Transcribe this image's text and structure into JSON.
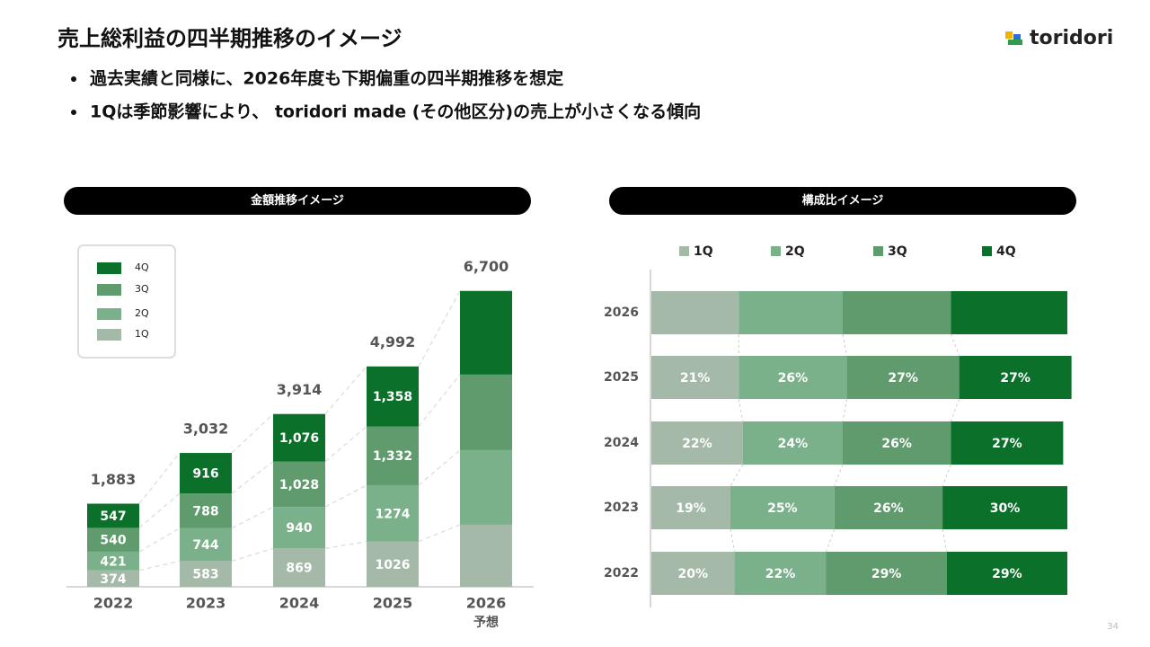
{
  "header": {
    "title": "売上総利益の四半期推移のイメージ",
    "bullets": [
      "過去実績と同様に、2026年度も下期偏重の四半期推移を想定",
      "1Qは季節影響により、 toridori made (その他区分)の売上が小さくなる傾向"
    ],
    "logo": "toridori",
    "page_number": "34"
  },
  "chart_data": [
    {
      "type": "bar",
      "stacked": true,
      "title": "金額推移イメージ",
      "categories": [
        "2022",
        "2023",
        "2024",
        "2025",
        "2026"
      ],
      "category_note": "予想",
      "ylim": [
        0,
        7000
      ],
      "series": [
        {
          "name": "1Q",
          "color": "#a4b9a7",
          "values": [
            374,
            583,
            869,
            1026,
            1405
          ],
          "value_labels": [
            "374",
            "583",
            "869",
            "1026",
            null
          ]
        },
        {
          "name": "2Q",
          "color": "#7ab08a",
          "values": [
            421,
            744,
            940,
            1274,
            1690
          ],
          "value_labels": [
            "421",
            "744",
            "940",
            "1274",
            null
          ]
        },
        {
          "name": "3Q",
          "color": "#5f9b6c",
          "values": [
            540,
            788,
            1028,
            1332,
            1710
          ],
          "value_labels": [
            "540",
            "788",
            "1,028",
            "1,332",
            null
          ]
        },
        {
          "name": "4Q",
          "color": "#0b7029",
          "values": [
            547,
            916,
            1076,
            1358,
            1895
          ],
          "value_labels": [
            "547",
            "916",
            "1,076",
            "1,358",
            null
          ]
        }
      ],
      "totals": [
        1883,
        3032,
        3914,
        4992,
        6700
      ],
      "total_labels": [
        "1,883",
        "3,032",
        "3,914",
        "4,992",
        "6,700"
      ],
      "legend": "upper left"
    },
    {
      "type": "bar",
      "stacked": true,
      "orientation": "horizontal",
      "title": "構成比イメージ",
      "categories": [
        "2026",
        "2025",
        "2024",
        "2023",
        "2022"
      ],
      "xlim": [
        0,
        100
      ],
      "legend": "top",
      "series": [
        {
          "name": "1Q",
          "color": "#a4b9a7",
          "values": [
            21,
            21,
            22,
            19,
            20
          ],
          "value_labels": [
            null,
            "21%",
            "22%",
            "19%",
            "20%"
          ]
        },
        {
          "name": "2Q",
          "color": "#7ab08a",
          "values": [
            25,
            26,
            24,
            25,
            22
          ],
          "value_labels": [
            null,
            "26%",
            "24%",
            "25%",
            "22%"
          ]
        },
        {
          "name": "3Q",
          "color": "#5f9b6c",
          "values": [
            26,
            27,
            26,
            26,
            29
          ],
          "value_labels": [
            null,
            "27%",
            "26%",
            "26%",
            "29%"
          ]
        },
        {
          "name": "4Q",
          "color": "#0b7029",
          "values": [
            28,
            27,
            27,
            30,
            29
          ],
          "value_labels": [
            null,
            "27%",
            "27%",
            "30%",
            "29%"
          ]
        }
      ]
    }
  ]
}
